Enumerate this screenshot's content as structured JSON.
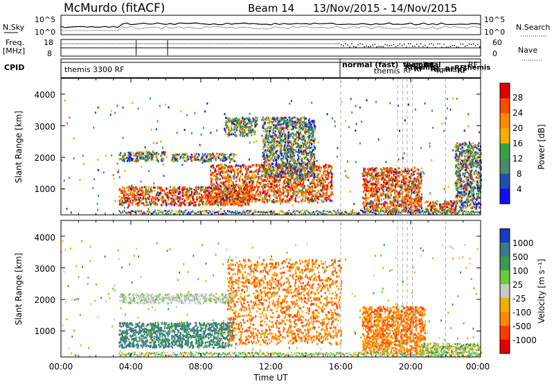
{
  "header": {
    "station": "McMurdo (fitACF)",
    "beam": "Beam 14",
    "dates": "13/Nov/2015 - 14/Nov/2015"
  },
  "top_panels": {
    "nsky_label": "N.Sky",
    "nsky_ticks": [
      "10^5",
      "10^0"
    ],
    "nsearch_label": "N.Search",
    "nsearch_ticks": [
      "10^5",
      "10^0"
    ],
    "freq_label": "Freq.",
    "freq_unit": "[MHz]",
    "freq_ticks": [
      "18",
      "8"
    ],
    "nave_label": "Nave",
    "nave_ticks": [
      "60",
      "0"
    ],
    "cpid_label": "CPID",
    "cpid_entries": [
      {
        "text": "themis 3300 RF",
        "weight": "normal"
      },
      {
        "text": "normal (fast)",
        "weight": "bold"
      },
      {
        "text": "themis",
        "weight": "normal"
      },
      {
        "text": "RF",
        "weight": "normal"
      }
    ]
  },
  "x_axis": {
    "label": "Time UT",
    "ticks": [
      "00:00",
      "04:00",
      "08:00",
      "12:00",
      "16:00",
      "20:00",
      "00:00"
    ]
  },
  "panels": {
    "power": {
      "ylabel": "Slant Range [km]",
      "yticks": [
        "4000",
        "3000",
        "2000",
        "1000"
      ]
    },
    "velocity": {
      "ylabel": "Slant Range [km]",
      "yticks": [
        "4000",
        "3000",
        "2000",
        "1000"
      ]
    }
  },
  "colorbars": {
    "power": {
      "label": "Power [dB]",
      "ticks": [
        "28",
        "24",
        "20",
        "16",
        "12",
        "8",
        "4"
      ],
      "colors": [
        "#e00000",
        "#ff4a00",
        "#ff8a00",
        "#f3b000",
        "#3aa048",
        "#4a8a6a",
        "#2050b0",
        "#1010f0"
      ]
    },
    "velocity": {
      "label": "Velocity [m s⁻¹]",
      "ticks": [
        "1000",
        "500",
        "100",
        "25",
        "-25",
        "-100",
        "-500",
        "-1000"
      ],
      "colors": [
        "#1a3cc0",
        "#3a7a8a",
        "#3a9a50",
        "#6acc3a",
        "#c8c8c8",
        "#f0b000",
        "#ff8800",
        "#ff3a00",
        "#e00000"
      ]
    }
  },
  "chart_data": {
    "type": "heatmap",
    "x_range": [
      "00:00",
      "24:00"
    ],
    "y_range": [
      180,
      4500
    ],
    "mode_changes_ut_hours": [
      16.0,
      19.25,
      19.55,
      19.8,
      20.1,
      22.0
    ],
    "power_features": [
      {
        "t0": 3.3,
        "t1": 10.8,
        "r0": 500,
        "r1": 1100,
        "level": "high"
      },
      {
        "t0": 3.3,
        "t1": 6.0,
        "r0": 1900,
        "r1": 2200,
        "level": "low"
      },
      {
        "t0": 6.3,
        "t1": 10.0,
        "r0": 1900,
        "r1": 2150,
        "level": "low"
      },
      {
        "t0": 8.5,
        "t1": 15.5,
        "r0": 600,
        "r1": 1800,
        "level": "high"
      },
      {
        "t0": 9.3,
        "t1": 11.2,
        "r0": 2700,
        "r1": 3300,
        "level": "low"
      },
      {
        "t0": 11.5,
        "t1": 14.5,
        "r0": 1400,
        "r1": 3300,
        "level": "low"
      },
      {
        "t0": 17.2,
        "t1": 20.6,
        "r0": 300,
        "r1": 1700,
        "level": "high"
      },
      {
        "t0": 20.8,
        "t1": 22.6,
        "r0": 280,
        "r1": 650,
        "level": "high"
      },
      {
        "t0": 22.5,
        "t1": 24.0,
        "r0": 400,
        "r1": 2500,
        "level": "low"
      }
    ],
    "velocity_features": [
      {
        "t0": 3.3,
        "t1": 9.8,
        "r0": 500,
        "r1": 1300,
        "vel": "positive small (100-500)"
      },
      {
        "t0": 3.3,
        "t1": 10.0,
        "r0": 1900,
        "r1": 2200,
        "vel": "near zero (-25 to 25)"
      },
      {
        "t0": 9.5,
        "t1": 16.0,
        "r0": 600,
        "r1": 3300,
        "vel": "negative (-100 to -500)"
      },
      {
        "t0": 17.2,
        "t1": 20.8,
        "r0": 300,
        "r1": 1800,
        "vel": "negative (-100 to -500)"
      },
      {
        "t0": 20.5,
        "t1": 24.0,
        "r0": 250,
        "r1": 650,
        "vel": "positive small (25-100)"
      }
    ]
  }
}
